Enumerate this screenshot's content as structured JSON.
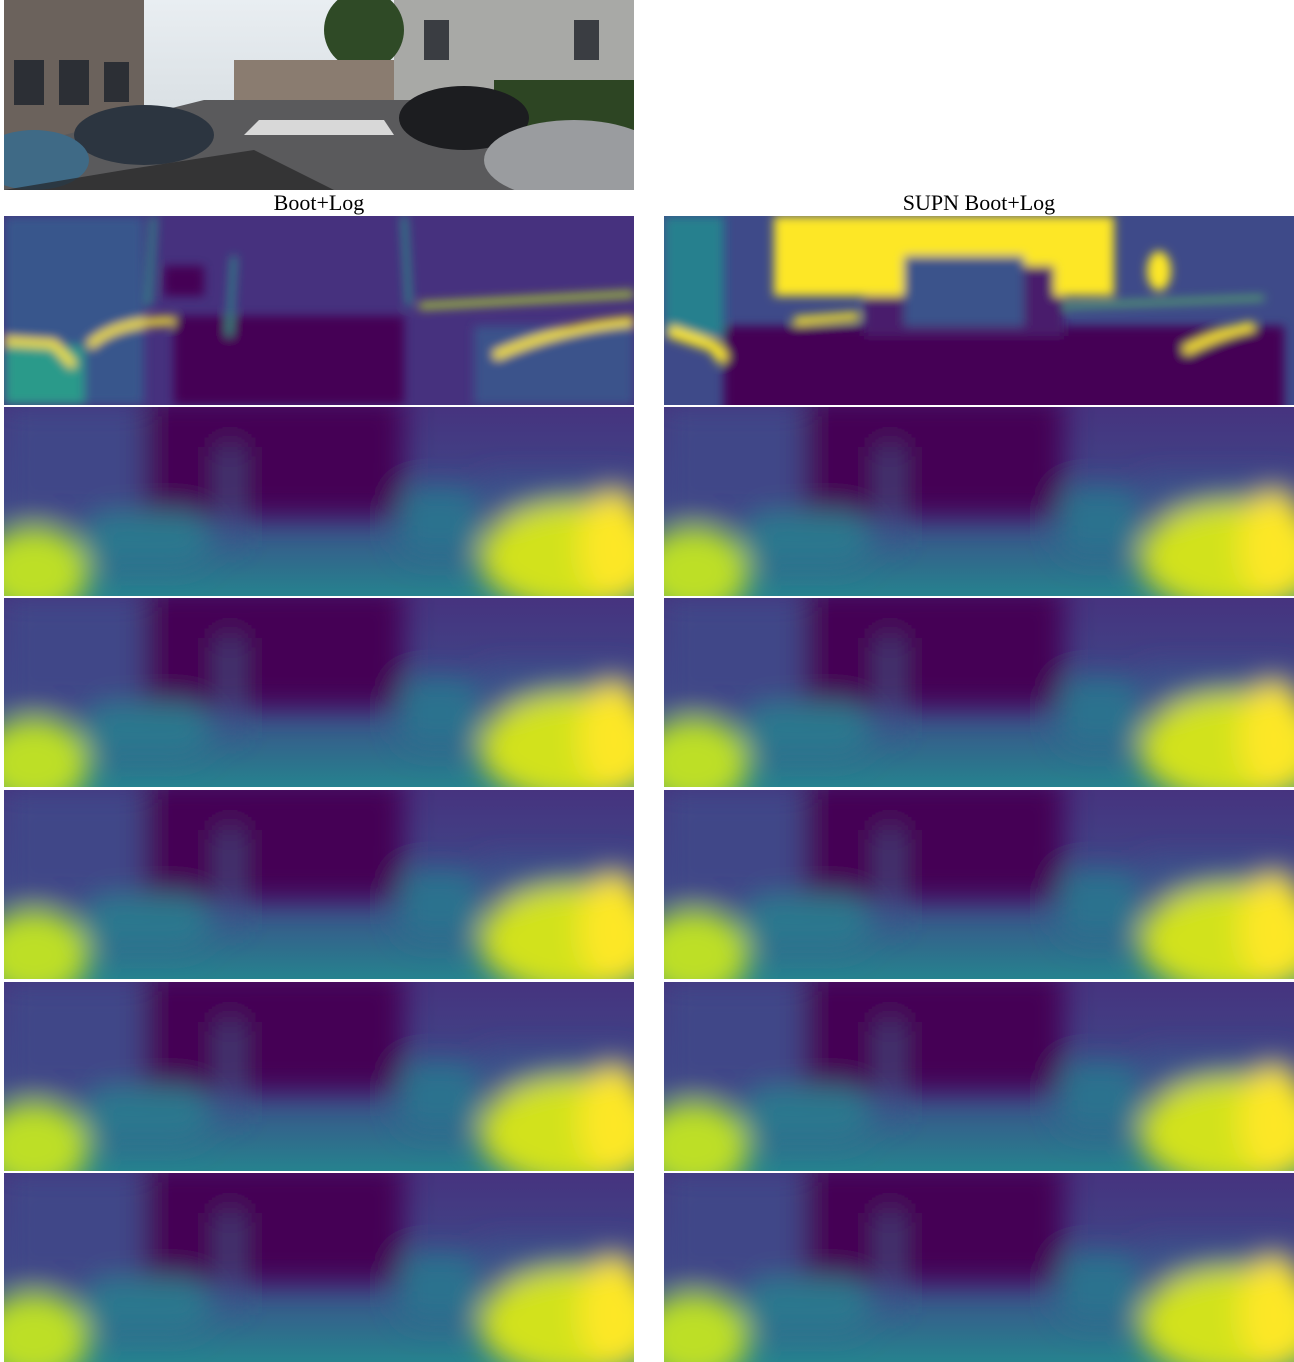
{
  "column_titles": [
    "Boot+Log",
    "SUPN Boot+Log"
  ]
}
